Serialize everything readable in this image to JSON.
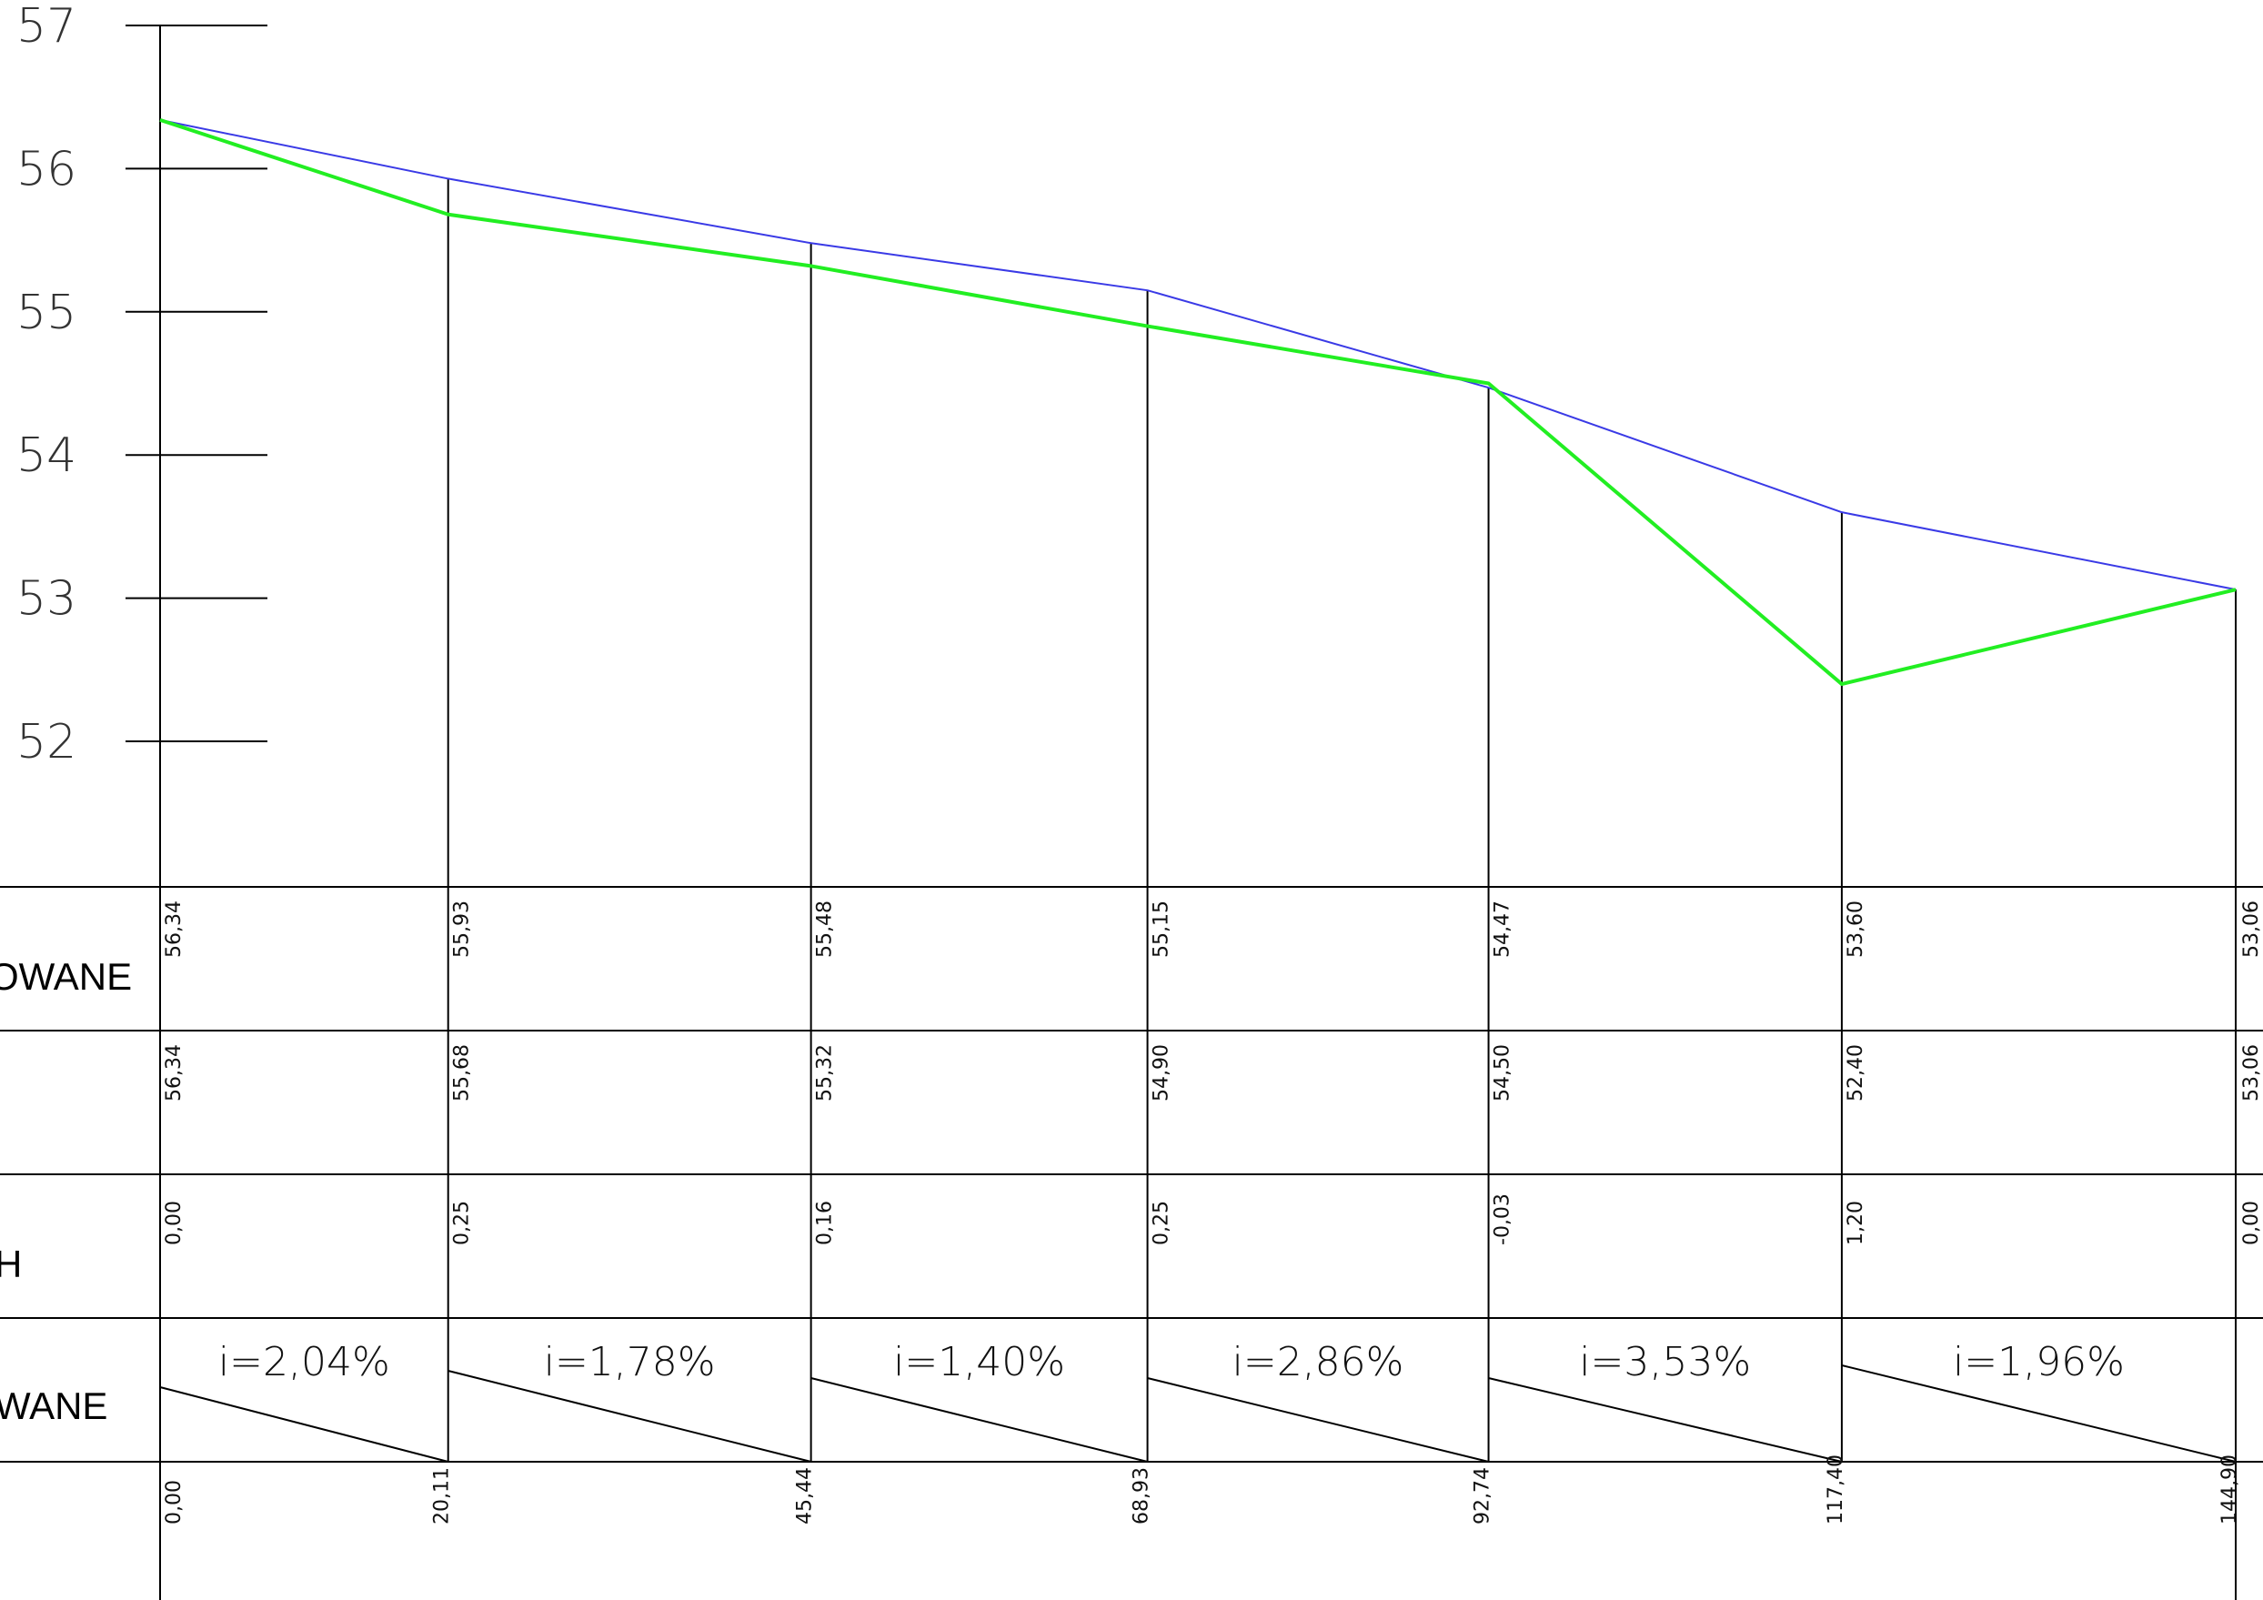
{
  "chart_data": {
    "type": "line",
    "y_axis": {
      "ticks": [
        57,
        56,
        55,
        54,
        53,
        52
      ],
      "ylim": [
        51.0,
        57.0
      ]
    },
    "x": [
      0.0,
      20.11,
      45.44,
      68.93,
      92.74,
      117.4,
      144.9
    ],
    "series": [
      {
        "values": [
          56.34,
          55.93,
          55.48,
          55.15,
          54.47,
          53.6,
          53.06
        ],
        "color": "#3a3ae6"
      },
      {
        "values": [
          56.34,
          55.68,
          55.32,
          54.9,
          54.5,
          52.4,
          53.06
        ],
        "color": "#22ee22"
      }
    ],
    "table": {
      "rows": [
        {
          "label": "OWANE",
          "values": [
            "56,34",
            "55,93",
            "55,48",
            "55,15",
            "54,47",
            "53,60",
            "53,06"
          ]
        },
        {
          "label": "",
          "values": [
            "56,34",
            "55,68",
            "55,32",
            "54,90",
            "54,50",
            "52,40",
            "53,06"
          ]
        },
        {
          "label": "H",
          "values": [
            "0,00",
            "0,25",
            "0,16",
            "0,25",
            "-0,03",
            "1,20",
            "0,00"
          ]
        },
        {
          "label": "WANE",
          "slopes": [
            "i=2,04%",
            "i=1,78%",
            "i=1,40%",
            "i=2,86%",
            "i=3,53%",
            "i=1,96%"
          ]
        }
      ],
      "distances": [
        "0,00",
        "20,11",
        "45,44",
        "68,93",
        "92,74",
        "117,40",
        "144,90"
      ]
    }
  }
}
